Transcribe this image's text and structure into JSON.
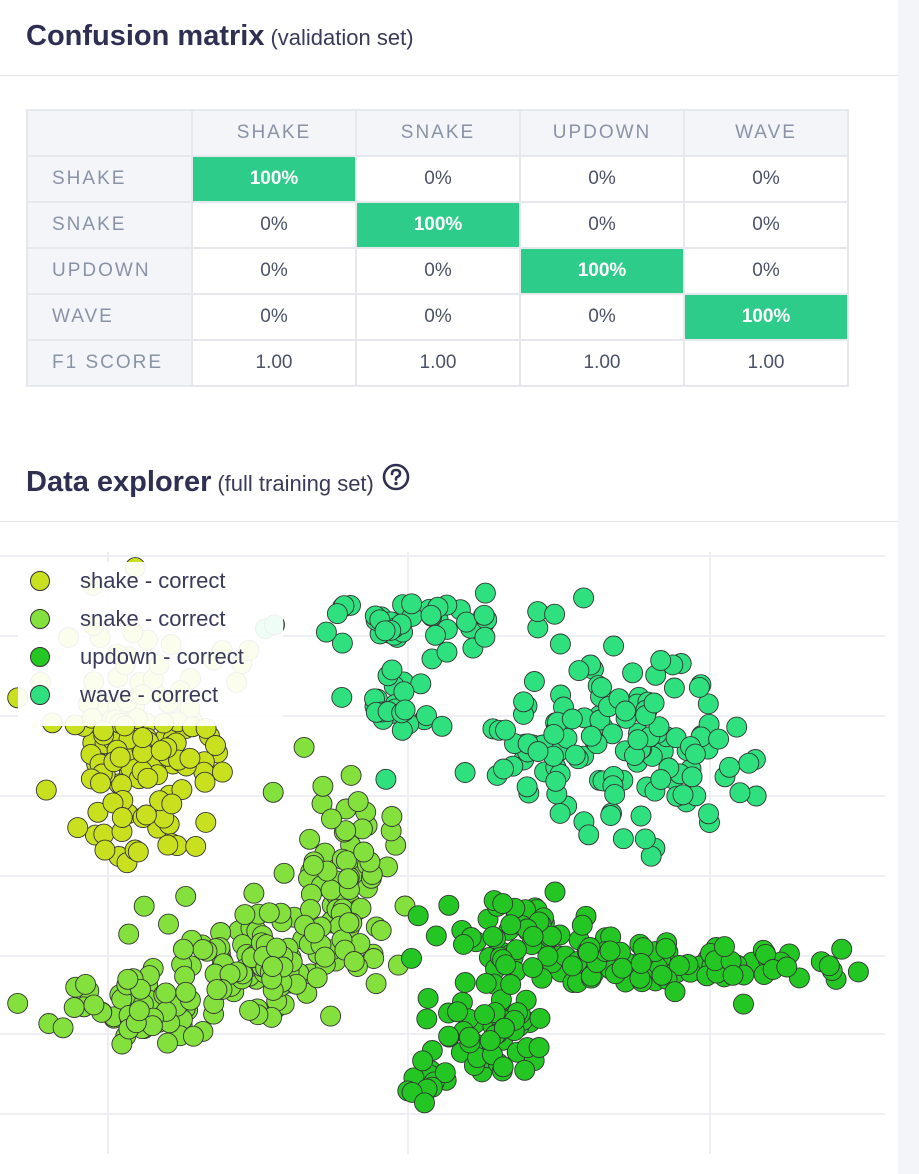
{
  "confusion_matrix": {
    "title": "Confusion matrix",
    "subtitle": "(validation set)",
    "columns": [
      "SHAKE",
      "SNAKE",
      "UPDOWN",
      "WAVE"
    ],
    "rows": [
      {
        "label": "SHAKE",
        "cells": [
          "100%",
          "0%",
          "0%",
          "0%"
        ]
      },
      {
        "label": "SNAKE",
        "cells": [
          "0%",
          "100%",
          "0%",
          "0%"
        ]
      },
      {
        "label": "UPDOWN",
        "cells": [
          "0%",
          "0%",
          "100%",
          "0%"
        ]
      },
      {
        "label": "WAVE",
        "cells": [
          "0%",
          "0%",
          "0%",
          "100%"
        ]
      }
    ],
    "f1": {
      "label": "F1 SCORE",
      "cells": [
        "1.00",
        "1.00",
        "1.00",
        "1.00"
      ]
    },
    "highlight_color": "#2ecc8a"
  },
  "data_explorer": {
    "title": "Data explorer",
    "subtitle": "(full training set)",
    "help_icon": "question-circle-icon"
  },
  "chart_data": {
    "type": "scatter",
    "title": "",
    "xlabel": "",
    "ylabel": "",
    "grid": true,
    "legend_position": "top-left",
    "series": [
      {
        "name": "shake - correct",
        "color": "#c8e01e",
        "clusters": [
          {
            "cx": 0.16,
            "cy": 0.31,
            "sx": 0.05,
            "sy": 0.1,
            "n": 150
          }
        ]
      },
      {
        "name": "snake - correct",
        "color": "#84e03c",
        "clusters": [
          {
            "cx": 0.38,
            "cy": 0.54,
            "sx": 0.035,
            "sy": 0.07,
            "n": 70
          },
          {
            "cx": 0.29,
            "cy": 0.7,
            "sx": 0.06,
            "sy": 0.045,
            "n": 110
          },
          {
            "cx": 0.16,
            "cy": 0.78,
            "sx": 0.05,
            "sy": 0.03,
            "n": 60
          }
        ]
      },
      {
        "name": "updown - correct",
        "color": "#23c623",
        "clusters": [
          {
            "cx": 0.59,
            "cy": 0.65,
            "sx": 0.04,
            "sy": 0.035,
            "n": 55
          },
          {
            "cx": 0.55,
            "cy": 0.8,
            "sx": 0.035,
            "sy": 0.05,
            "n": 60
          },
          {
            "cx": 0.78,
            "cy": 0.7,
            "sx": 0.09,
            "sy": 0.02,
            "n": 90
          },
          {
            "cx": 0.48,
            "cy": 0.89,
            "sx": 0.015,
            "sy": 0.02,
            "n": 12
          }
        ]
      },
      {
        "name": "wave - correct",
        "color": "#2ee07e",
        "clusters": [
          {
            "cx": 0.48,
            "cy": 0.13,
            "sx": 0.07,
            "sy": 0.025,
            "n": 50
          },
          {
            "cx": 0.44,
            "cy": 0.26,
            "sx": 0.02,
            "sy": 0.03,
            "n": 25
          },
          {
            "cx": 0.7,
            "cy": 0.33,
            "sx": 0.08,
            "sy": 0.07,
            "n": 140
          }
        ]
      }
    ]
  }
}
